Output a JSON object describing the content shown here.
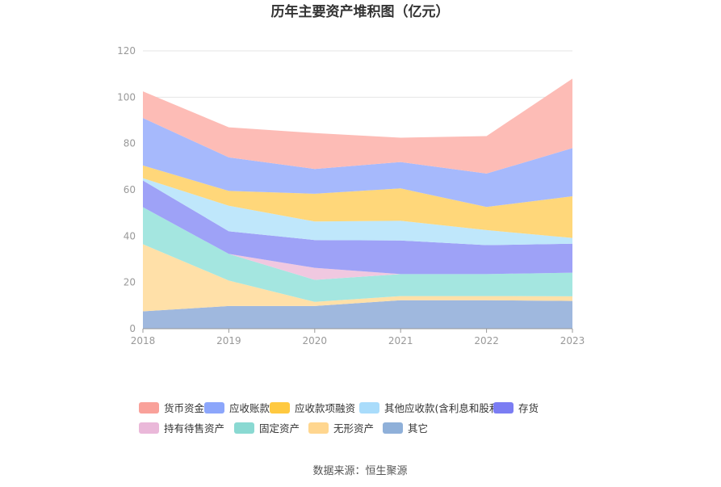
{
  "chart_data": {
    "type": "area",
    "stacked": true,
    "title": "历年主要资产堆积图（亿元）",
    "x": [
      "2018",
      "2019",
      "2020",
      "2021",
      "2022",
      "2023"
    ],
    "ylim": [
      0,
      120
    ],
    "yticks": [
      "0",
      "20",
      "40",
      "60",
      "80",
      "100",
      "120"
    ],
    "grid": true,
    "legend_position": "bottom",
    "series": [
      {
        "name": "其它",
        "color": "#9fb8de",
        "values": [
          7.5,
          9.8,
          9.8,
          12.3,
          12.3,
          12.0
        ]
      },
      {
        "name": "无形资产",
        "color": "#ffe0a8",
        "values": [
          29.0,
          11.0,
          1.8,
          1.8,
          1.8,
          2.0
        ]
      },
      {
        "name": "固定资产",
        "color": "#a4e6e0",
        "values": [
          16.0,
          11.5,
          9.5,
          9.5,
          9.5,
          10.2
        ]
      },
      {
        "name": "持有待售资产",
        "color": "#f0c8e0",
        "values": [
          0.0,
          0.0,
          5.2,
          0.0,
          0.0,
          0.0
        ]
      },
      {
        "name": "存货",
        "color": "#9ea2f7",
        "values": [
          11.5,
          9.8,
          12.0,
          14.5,
          12.5,
          12.5
        ]
      },
      {
        "name": "其他应收款(含利息和股利)",
        "color": "#bfe7fb",
        "values": [
          1.0,
          11.0,
          8.0,
          8.5,
          6.5,
          2.5
        ]
      },
      {
        "name": "应收款项融资",
        "color": "#ffd77a",
        "values": [
          5.5,
          6.4,
          12.0,
          14.0,
          10.0,
          18.0
        ]
      },
      {
        "name": "应收账款",
        "color": "#a6b9fc",
        "values": [
          20.5,
          14.5,
          10.7,
          11.4,
          14.4,
          20.8
        ]
      },
      {
        "name": "货币资金",
        "color": "#fdbcb6",
        "values": [
          11.5,
          13.0,
          15.5,
          10.5,
          16.2,
          30.0
        ]
      }
    ],
    "legend": [
      {
        "name": "货币资金",
        "color": "#f9a19a"
      },
      {
        "name": "应收账款",
        "color": "#8ca6fb"
      },
      {
        "name": "应收款项融资",
        "color": "#ffc940"
      },
      {
        "name": "其他应收款(含利息和股利)",
        "color": "#a9dcfb"
      },
      {
        "name": "存货",
        "color": "#7b7df3"
      },
      {
        "name": "持有待售资产",
        "color": "#eab8d9"
      },
      {
        "name": "固定资产",
        "color": "#8ad9d2"
      },
      {
        "name": "无形资产",
        "color": "#ffd68f"
      },
      {
        "name": "其它",
        "color": "#8fb0d9"
      }
    ]
  },
  "footer": {
    "source": "数据来源：恒生聚源"
  }
}
